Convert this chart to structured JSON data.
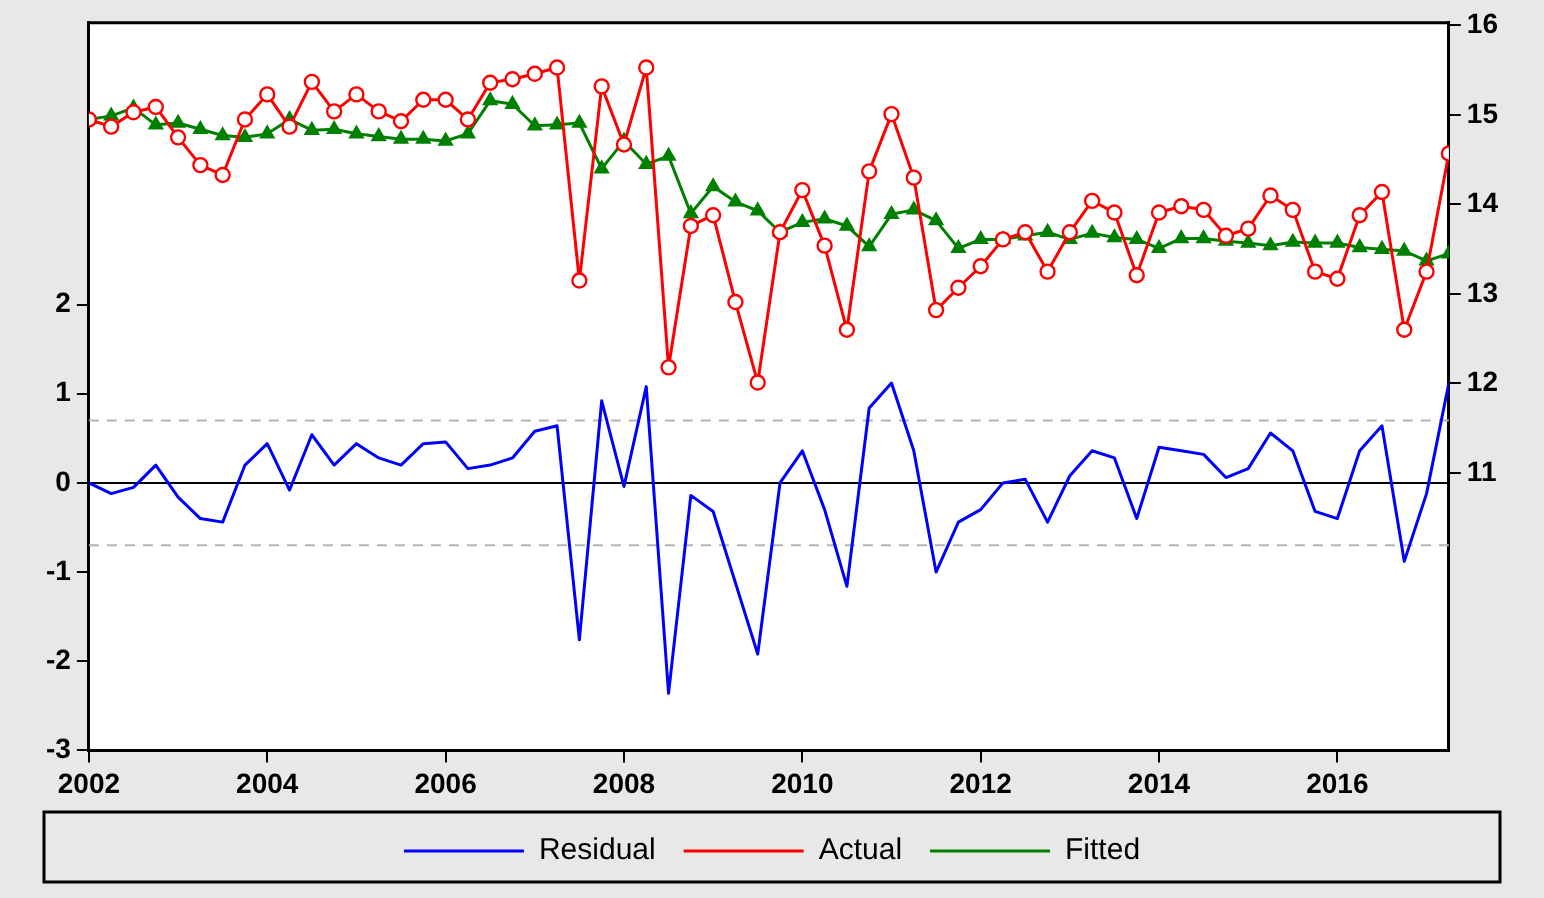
{
  "chart_data": {
    "type": "line",
    "x": [
      2002,
      2002.25,
      2002.5,
      2002.75,
      2003,
      2003.25,
      2003.5,
      2003.75,
      2004,
      2004.25,
      2004.5,
      2004.75,
      2005,
      2005.25,
      2005.5,
      2005.75,
      2006,
      2006.25,
      2006.5,
      2006.75,
      2007,
      2007.25,
      2007.5,
      2007.75,
      2008,
      2008.25,
      2008.5,
      2008.75,
      2009,
      2009.25,
      2009.5,
      2009.75,
      2010,
      2010.25,
      2010.5,
      2010.75,
      2011,
      2011.25,
      2011.5,
      2011.75,
      2012,
      2012.25,
      2012.5,
      2012.75,
      2013,
      2013.25,
      2013.5,
      2013.75,
      2014,
      2014.25,
      2014.5,
      2014.75,
      2015,
      2015.25,
      2015.5,
      2015.75,
      2016,
      2016.25,
      2016.5,
      2016.75,
      2017,
      2017.25
    ],
    "series": [
      {
        "name": "Residual",
        "color": "#0000ff",
        "marker": "none",
        "values": [
          0,
          -0.12,
          -0.05,
          0.2,
          -0.16,
          -0.4,
          -0.44,
          0.2,
          0.44,
          -0.08,
          0.54,
          0.2,
          0.44,
          0.28,
          0.2,
          0.44,
          0.46,
          0.16,
          0.2,
          0.28,
          0.58,
          0.64,
          -1.76,
          0.92,
          -0.04,
          1.08,
          -2.36,
          -0.14,
          -0.32,
          -1.12,
          -1.92,
          0,
          0.36,
          -0.3,
          -1.16,
          0.84,
          1.12,
          0.36,
          -1.0,
          -0.44,
          -0.3,
          0,
          0.04,
          -0.44,
          0.08,
          0.36,
          0.28,
          -0.4,
          0.4,
          0.36,
          0.32,
          0.06,
          0.16,
          0.56,
          0.36,
          -0.32,
          -0.4,
          0.36,
          0.64,
          -0.88,
          -0.12,
          1.12
        ]
      },
      {
        "name": "Actual",
        "color": "#ff0000",
        "marker": "circle",
        "axis": "y2",
        "values": [
          14.95,
          14.87,
          15.03,
          15.09,
          14.75,
          14.44,
          14.33,
          14.95,
          15.23,
          14.87,
          15.37,
          15.04,
          15.23,
          15.04,
          14.93,
          15.17,
          15.17,
          14.95,
          15.36,
          15.4,
          15.46,
          15.53,
          13.15,
          15.32,
          14.67,
          15.53,
          12.18,
          13.76,
          13.88,
          12.91,
          12.01,
          13.69,
          14.16,
          13.54,
          12.6,
          14.37,
          15.01,
          14.3,
          12.82,
          13.07,
          13.31,
          13.61,
          13.69,
          13.25,
          13.69,
          14.04,
          13.91,
          13.21,
          13.91,
          13.98,
          13.94,
          13.65,
          13.73,
          14.1,
          13.94,
          13.25,
          13.17,
          13.88,
          14.14,
          12.6,
          13.25,
          14.57
        ]
      },
      {
        "name": "Fitted",
        "color": "#008000",
        "marker": "triangle",
        "axis": "y2",
        "values": [
          14.95,
          14.99,
          15.08,
          14.89,
          14.91,
          14.84,
          14.77,
          14.75,
          14.79,
          14.95,
          14.83,
          14.84,
          14.79,
          14.76,
          14.73,
          14.73,
          14.71,
          14.79,
          15.16,
          15.12,
          14.88,
          14.89,
          14.91,
          14.4,
          14.71,
          14.45,
          14.54,
          13.9,
          14.2,
          14.03,
          13.93,
          13.69,
          13.8,
          13.84,
          13.76,
          13.53,
          13.89,
          13.94,
          13.82,
          13.51,
          13.61,
          13.61,
          13.65,
          13.69,
          13.61,
          13.68,
          13.63,
          13.61,
          13.51,
          13.62,
          13.62,
          13.59,
          13.57,
          13.54,
          13.58,
          13.57,
          13.57,
          13.52,
          13.5,
          13.48,
          13.37,
          13.45
        ]
      }
    ],
    "xlim": [
      2002,
      2017.25
    ],
    "xticks": [
      2002,
      2004,
      2006,
      2008,
      2010,
      2012,
      2014,
      2016
    ],
    "ylim": [
      -3,
      5.16
    ],
    "yticks": [
      -3,
      -2,
      -1,
      0,
      1,
      2
    ],
    "y2lim": [
      7.9,
      16.03
    ],
    "y2ticks": [
      11,
      12,
      13,
      14,
      15,
      16
    ],
    "ref_lines": [
      {
        "axis": "y",
        "value": 0,
        "color": "#000000",
        "line_style": "solid"
      },
      {
        "axis": "y",
        "value": 0.7,
        "color": "#b4b4b4",
        "line_style": "dashed"
      },
      {
        "axis": "y",
        "value": -0.7,
        "color": "#b4b4b4",
        "line_style": "dashed"
      }
    ],
    "grid": false,
    "legend": "bottom",
    "line_style": "solid"
  }
}
